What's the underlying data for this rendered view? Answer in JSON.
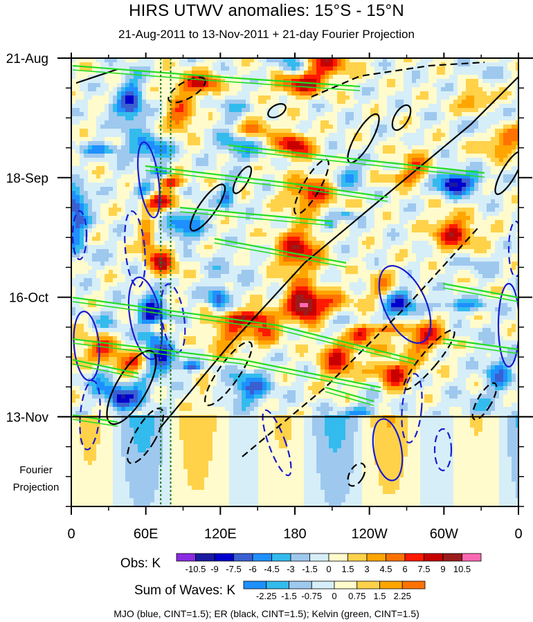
{
  "chart_data": {
    "type": "heatmap",
    "title": "HIRS UTWV anomalies: 15°S - 15°N",
    "subtitle": "21-Aug-2011 to 13-Nov-2011 + 21-day Fourier Projection",
    "x_tick_labels": [
      "0",
      "60E",
      "120E",
      "180",
      "120W",
      "60W",
      "0"
    ],
    "x_tick_lon": [
      0,
      60,
      120,
      180,
      240,
      300,
      360
    ],
    "x_range": [
      0,
      360
    ],
    "y_tick_labels": [
      {
        "label": "21-Aug",
        "day": 0
      },
      {
        "label": "18-Sep",
        "day": 28
      },
      {
        "label": "16-Oct",
        "day": 56
      },
      {
        "label": "13-Nov",
        "day": 84
      }
    ],
    "y_range_days": [
      0,
      105
    ],
    "projection_start_day": 84,
    "projection_label_line1": "Fourier",
    "projection_label_line2": "Projection",
    "reference_lines_lon": [
      72,
      80
    ],
    "obs_label": "Obs: K",
    "obs_levels": [
      "-10.5",
      "-9",
      "-7.5",
      "-6",
      "-4.5",
      "-3",
      "-1.5",
      "0",
      "1.5",
      "3",
      "4.5",
      "6",
      "7.5",
      "9",
      "10.5"
    ],
    "obs_colors": [
      "#8a2be2",
      "#1a1aa0",
      "#0000cd",
      "#3a5fd0",
      "#1e90ff",
      "#33bbee",
      "#9fc8ee",
      "#d6eef8",
      "#fffbcc",
      "#ffd24a",
      "#ffa500",
      "#ff7200",
      "#ff1a00",
      "#c80000",
      "#9b1c1c",
      "#ff69b4"
    ],
    "waves_label": "Sum of Waves: K",
    "waves_levels": [
      "-2.25",
      "-1.5",
      "-0.75",
      "0",
      "0.75",
      "1.5",
      "2.25"
    ],
    "waves_colors": [
      "#1e90ff",
      "#33bbee",
      "#9fc8ee",
      "#d6eef8",
      "#fffbcc",
      "#ffd24a",
      "#ffa500",
      "#ff7200"
    ],
    "footnote": "MJO (blue, CINT=1.5); ER (black, CINT=1.5); Kelvin (green, CINT=1.5)",
    "contour_colors": {
      "mjo": "#1a1ad0",
      "er": "#000000",
      "kelvin": "#22dd22"
    }
  }
}
